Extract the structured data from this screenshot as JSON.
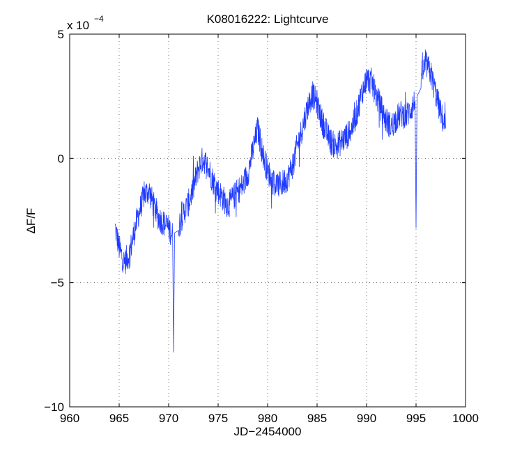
{
  "chart_data": {
    "type": "line",
    "title": "K08016222:  Lightcurve",
    "xlabel": "JD−2454000",
    "ylabel": "ΔF/F",
    "exponent_label": "x 10",
    "exponent_power": "−4",
    "xlim": [
      960,
      1000
    ],
    "ylim": [
      -10,
      5
    ],
    "xticks": [
      960,
      965,
      970,
      975,
      980,
      985,
      990,
      995,
      1000
    ],
    "xtick_labels": [
      "960",
      "965",
      "970",
      "975",
      "980",
      "985",
      "990",
      "995",
      "1000"
    ],
    "yticks": [
      -10,
      -5,
      0,
      5
    ],
    "ytick_labels": [
      "−10",
      "−5",
      "0",
      "5"
    ],
    "grid": true,
    "grid_style": "dotted",
    "series": [
      {
        "color": "#1f3bff",
        "x": [
          964.6,
          965.0,
          965.5,
          966.0,
          966.5,
          967.0,
          967.5,
          968.0,
          968.5,
          969.0,
          969.5,
          970.0,
          970.4,
          970.5,
          970.6,
          971.0,
          971.5,
          972.0,
          972.5,
          973.0,
          973.5,
          974.0,
          974.5,
          975.0,
          975.5,
          976.0,
          976.5,
          977.0,
          977.5,
          978.0,
          978.5,
          979.0,
          979.5,
          980.0,
          980.5,
          981.0,
          981.5,
          982.0,
          982.5,
          983.0,
          983.5,
          984.0,
          984.5,
          985.0,
          985.5,
          986.0,
          986.5,
          987.0,
          987.5,
          988.0,
          988.5,
          989.0,
          989.5,
          990.0,
          990.5,
          991.0,
          991.5,
          992.0,
          992.5,
          993.0,
          993.5,
          994.0,
          994.5,
          994.9,
          995.0,
          995.1,
          995.5,
          996.0,
          996.5,
          997.0,
          997.5,
          998.0
        ],
        "y": [
          -2.8,
          -3.6,
          -4.2,
          -3.9,
          -3.0,
          -2.2,
          -1.5,
          -1.3,
          -1.9,
          -2.4,
          -2.6,
          -2.8,
          -3.1,
          -7.8,
          -3.0,
          -2.7,
          -2.2,
          -1.8,
          -1.2,
          -0.4,
          0.0,
          -0.4,
          -0.9,
          -1.3,
          -1.6,
          -1.9,
          -1.6,
          -1.3,
          -1.1,
          -0.6,
          0.3,
          1.2,
          0.2,
          -0.5,
          -0.9,
          -1.1,
          -1.0,
          -0.8,
          -0.3,
          0.5,
          1.2,
          2.0,
          2.6,
          2.2,
          1.5,
          1.0,
          0.6,
          0.5,
          0.7,
          0.9,
          1.2,
          1.8,
          2.6,
          3.2,
          3.1,
          2.5,
          2.0,
          1.5,
          1.3,
          1.6,
          1.8,
          1.7,
          2.0,
          2.3,
          -2.8,
          2.5,
          3.3,
          3.8,
          3.4,
          2.6,
          1.8,
          1.2
        ]
      }
    ]
  }
}
